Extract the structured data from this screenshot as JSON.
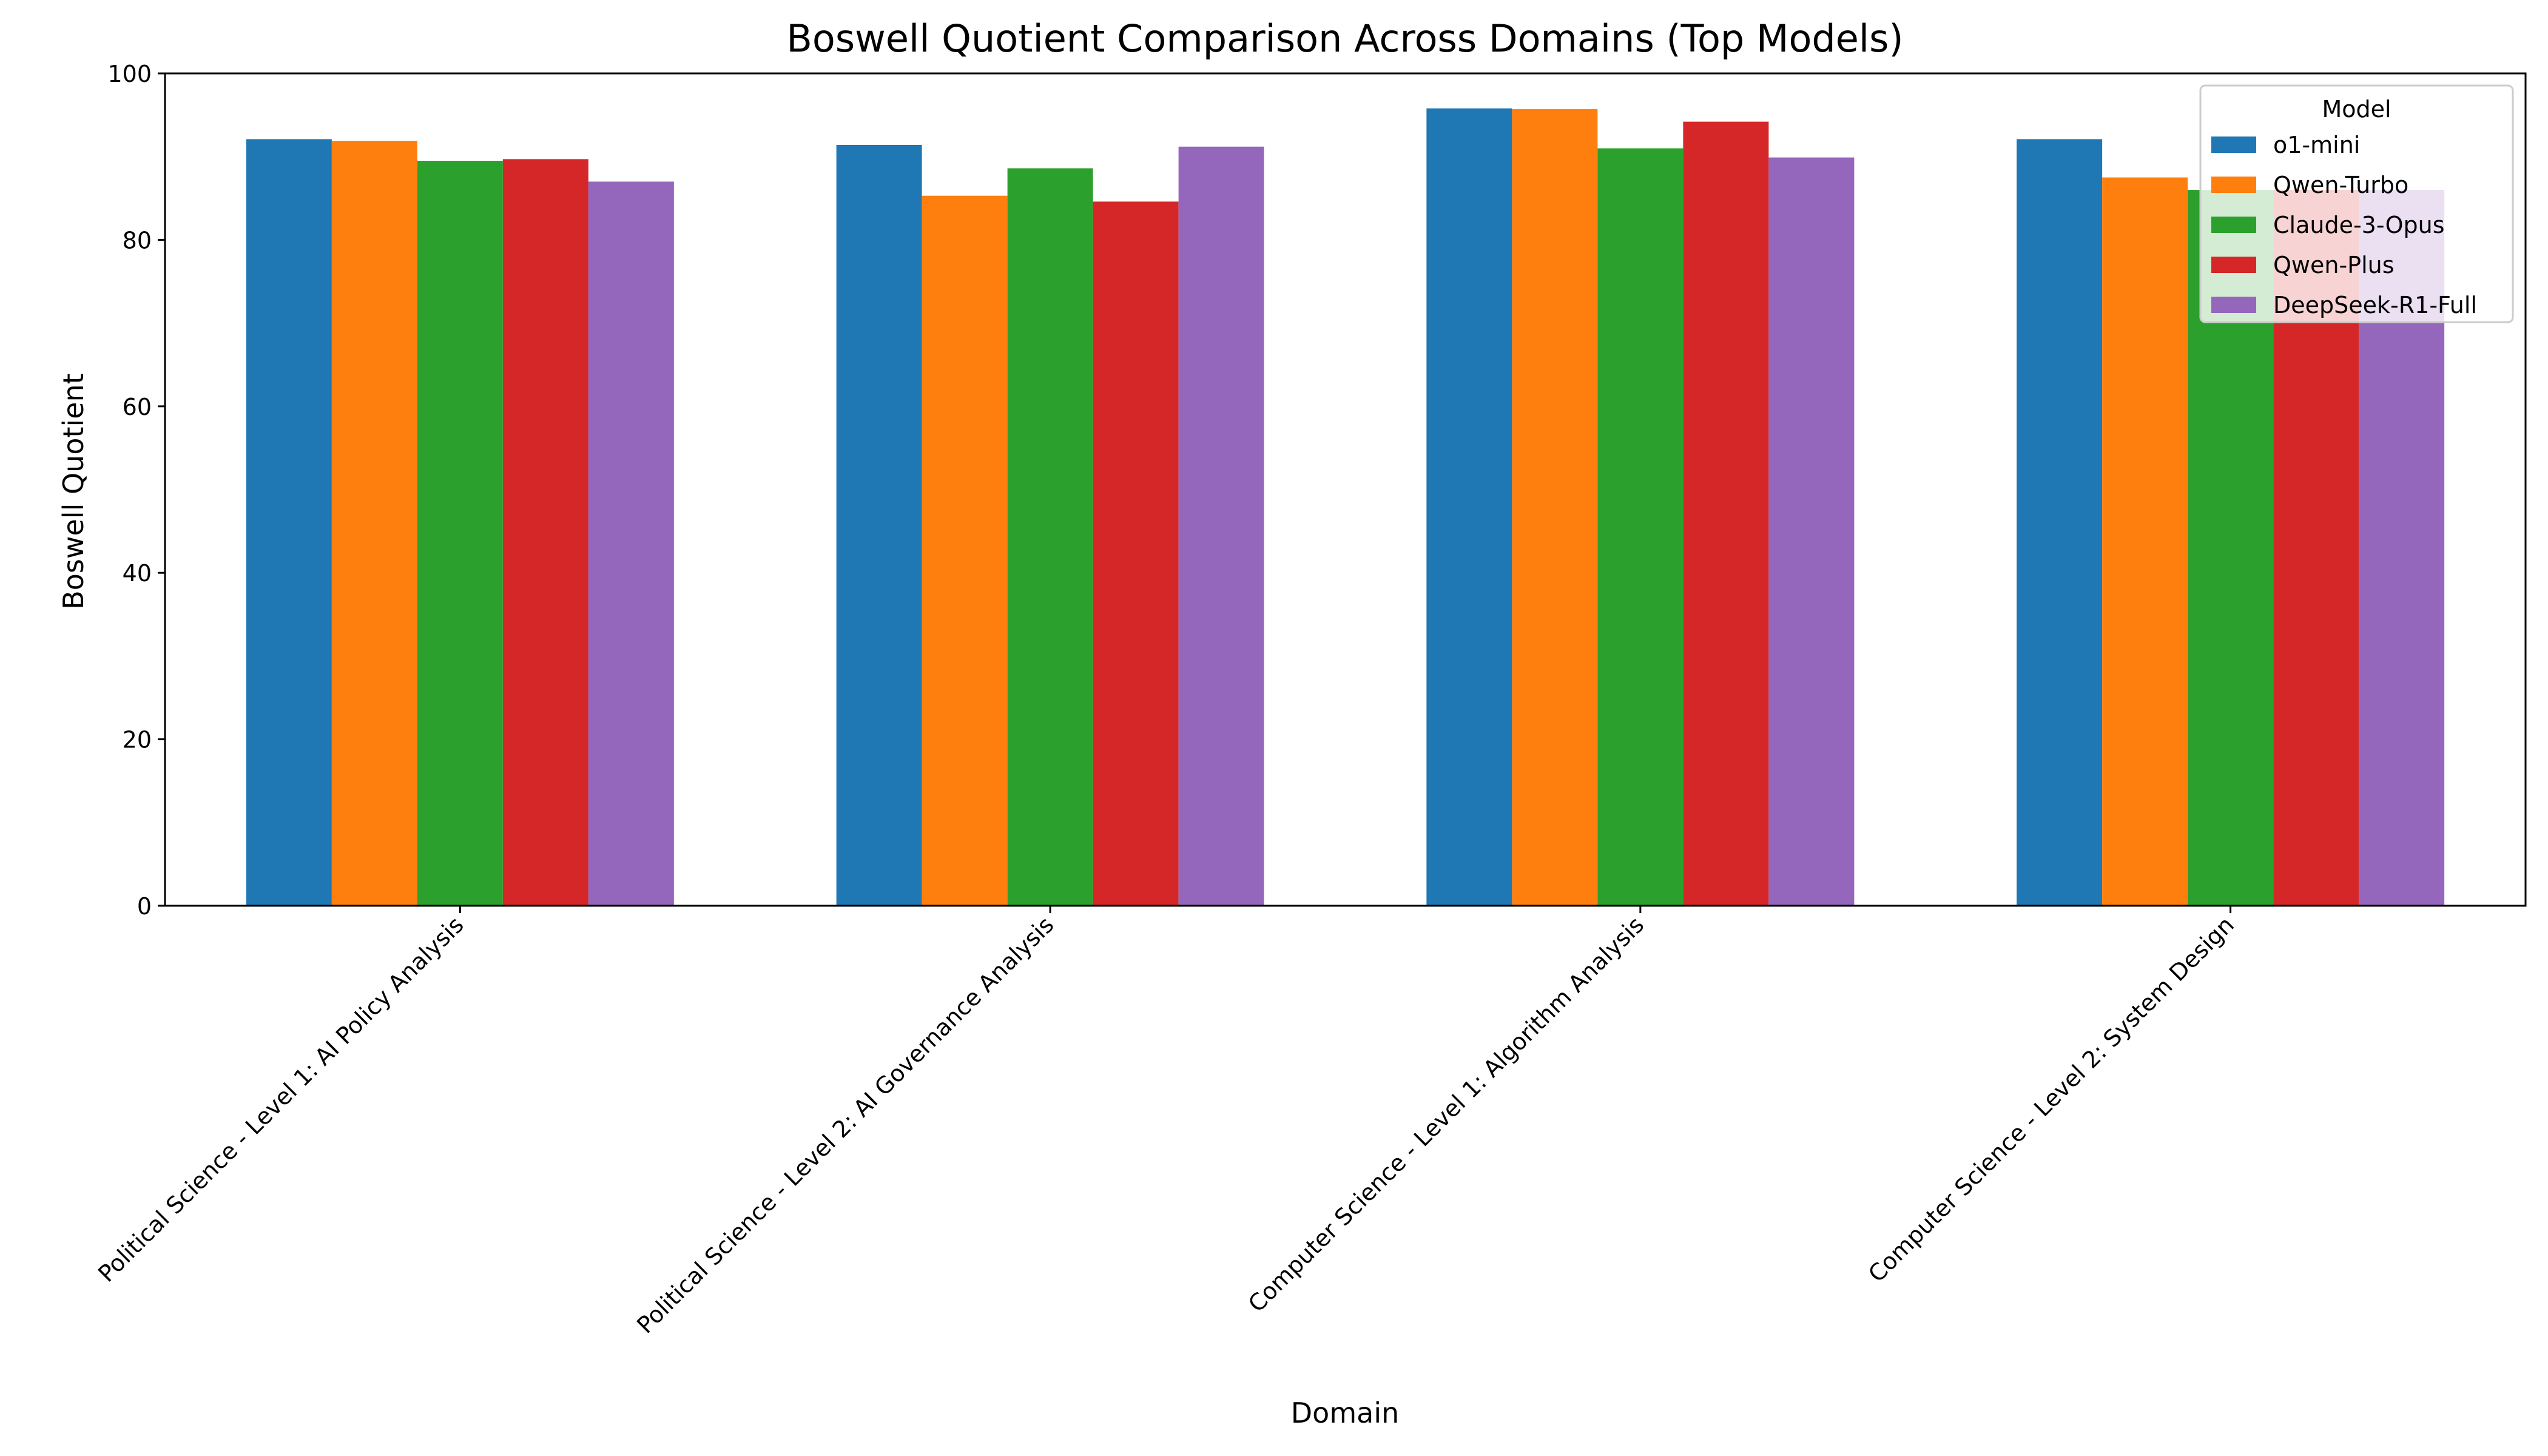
{
  "chart_data": {
    "type": "bar",
    "title": "Boswell Quotient Comparison Across Domains (Top Models)",
    "xlabel": "Domain",
    "ylabel": "Boswell Quotient",
    "ylim": [
      0,
      100
    ],
    "yticks": [
      0,
      20,
      40,
      60,
      80,
      100
    ],
    "grid": false,
    "legend_title": "Model",
    "legend_position": "top-right",
    "categories": [
      "Political Science - Level 1: AI Policy Analysis",
      "Political Science - Level 2: AI Governance Analysis",
      "Computer Science - Level 1: Algorithm Analysis",
      "Computer Science - Level 2: System Design"
    ],
    "series": [
      {
        "name": "o1-mini",
        "color": "#1f77b4",
        "values": [
          92.1,
          91.4,
          95.8,
          92.1
        ]
      },
      {
        "name": "Qwen-Turbo",
        "color": "#ff7f0e",
        "values": [
          91.9,
          85.3,
          95.7,
          87.5
        ]
      },
      {
        "name": "Claude-3-Opus",
        "color": "#2ca02c",
        "values": [
          89.5,
          88.6,
          91.0,
          86.0
        ]
      },
      {
        "name": "Qwen-Plus",
        "color": "#d62728",
        "values": [
          89.7,
          84.6,
          94.2,
          86.0
        ]
      },
      {
        "name": "DeepSeek-R1-Full",
        "color": "#9467bd",
        "values": [
          87.0,
          91.2,
          89.9,
          86.0
        ]
      }
    ]
  }
}
